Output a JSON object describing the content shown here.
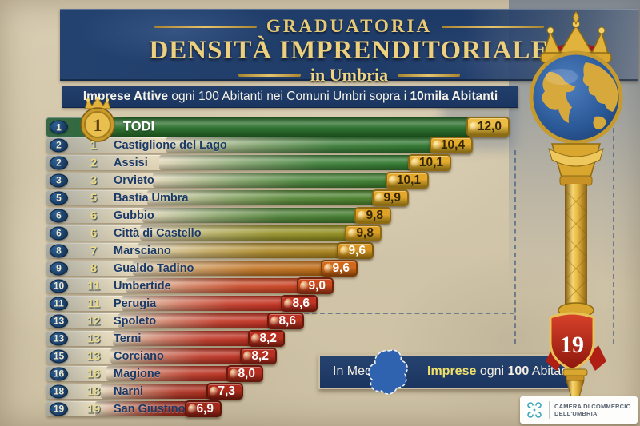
{
  "header": {
    "title_line1": "GRADUATORIA",
    "title_line2": "DENSITÀ IMPRENDITORIALE",
    "title_line3": "in Umbria",
    "subtitle_bold1": "Imprese Attive",
    "subtitle_mid": " ogni 100 Abitanti nei Comuni Umbri sopra i ",
    "subtitle_bold2": "10mila Abitanti"
  },
  "chart_data": {
    "type": "bar",
    "orientation": "horizontal",
    "title": "GRADUATORIA DENSITÀ IMPRENDITORIALE in Umbria",
    "subtitle": "Imprese Attive ogni 100 Abitanti nei Comuni Umbri sopra i 10mila Abitanti",
    "unit": "imprese attive ogni 100 abitanti",
    "categories": [
      "TODI",
      "Castiglione del Lago",
      "Assisi",
      "Orvieto",
      "Bastia Umbra",
      "Gubbio",
      "Città di Castello",
      "Marsciano",
      "Gualdo Tadino",
      "Umbertide",
      "Perugia",
      "Spoleto",
      "Terni",
      "Corciano",
      "Magione",
      "Narni",
      "San Giustino"
    ],
    "values": [
      12.0,
      10.4,
      10.1,
      10.1,
      9.9,
      9.8,
      9.8,
      9.6,
      9.6,
      9.0,
      8.6,
      8.6,
      8.2,
      8.2,
      8.0,
      7.3,
      6.9
    ],
    "value_labels": [
      "12,0",
      "10,4",
      "10,1",
      "10,1",
      "9,9",
      "9,8",
      "9,8",
      "9,6",
      "9,6",
      "9,0",
      "8,6",
      "8,6",
      "8,2",
      "8,2",
      "8,0",
      "7,3",
      "6,9"
    ],
    "rank_column_1": [
      "1",
      "2",
      "2",
      "3",
      "5",
      "6",
      "6",
      "8",
      "9",
      "10",
      "11",
      "13",
      "13",
      "15",
      "16",
      "18",
      "19"
    ],
    "rank_column_2": [
      "1",
      "1",
      "2",
      "3",
      "5",
      "6",
      "6",
      "7",
      "8",
      "11",
      "11",
      "12",
      "13",
      "13",
      "16",
      "18",
      "19"
    ],
    "rows": [
      {
        "rank1": "1",
        "rank2": "1",
        "name": "TODI",
        "label": "12,0",
        "value": 12.0,
        "bar_color": "#256c27",
        "badge_bg": "#ecbd45",
        "badge_border": "#8e6a12",
        "badge_text": "#322605",
        "bar_end": 633,
        "highlight": true
      },
      {
        "rank1": "2",
        "rank2": "1",
        "name": "Castiglione del Lago",
        "label": "10,4",
        "value": 10.4,
        "bar_color": "#2d752d",
        "badge_bg": "#e5ac2e",
        "badge_border": "#8e6a12",
        "badge_text": "#322605",
        "bar_end": 587,
        "highlight": false
      },
      {
        "rank1": "2",
        "rank2": "2",
        "name": "Assisi",
        "label": "10,1",
        "value": 10.1,
        "bar_color": "#30782e",
        "badge_bg": "#e5ac2e",
        "badge_border": "#8e6a12",
        "badge_text": "#322605",
        "bar_end": 560,
        "highlight": false
      },
      {
        "rank1": "3",
        "rank2": "3",
        "name": "Orvieto",
        "label": "10,1",
        "value": 10.1,
        "bar_color": "#3a7b2c",
        "badge_bg": "#e2a72b",
        "badge_border": "#8e6a12",
        "badge_text": "#322605",
        "bar_end": 532,
        "highlight": false
      },
      {
        "rank1": "5",
        "rank2": "5",
        "name": "Bastia Umbra",
        "label": "9,9",
        "value": 9.9,
        "bar_color": "#477e29",
        "badge_bg": "#e2a72b",
        "badge_border": "#8e6a12",
        "badge_text": "#322605",
        "bar_end": 507,
        "highlight": false
      },
      {
        "rank1": "6",
        "rank2": "6",
        "name": "Gubbio",
        "label": "9,8",
        "value": 9.8,
        "bar_color": "#40792a",
        "badge_bg": "#dfa228",
        "badge_border": "#8e6a12",
        "badge_text": "#322605",
        "bar_end": 485,
        "highlight": false
      },
      {
        "rank1": "6",
        "rank2": "6",
        "name": "Città di Castello",
        "label": "9,8",
        "value": 9.8,
        "bar_color": "#8f8c1d",
        "badge_bg": "#dda026",
        "badge_border": "#8e6a12",
        "badge_text": "#322605",
        "bar_end": 473,
        "highlight": false
      },
      {
        "rank1": "8",
        "rank2": "7",
        "name": "Marsciano",
        "label": "9,6",
        "value": 9.6,
        "bar_color": "#a8811b",
        "badge_bg": "#d79420",
        "badge_border": "#7d5a0e",
        "badge_text": "#ffffff",
        "bar_end": 463,
        "highlight": false
      },
      {
        "rank1": "9",
        "rank2": "8",
        "name": "Gualdo Tadino",
        "label": "9,6",
        "value": 9.6,
        "bar_color": "#bd6a15",
        "badge_bg": "#d2691a",
        "badge_border": "#7c3c0a",
        "badge_text": "#ffffff",
        "bar_end": 443,
        "highlight": false
      },
      {
        "rank1": "10",
        "rank2": "11",
        "name": "Umbertide",
        "label": "9,0",
        "value": 9.0,
        "bar_color": "#c63e1d",
        "badge_bg": "#cc4a1e",
        "badge_border": "#6f2410",
        "badge_text": "#ffffff",
        "bar_end": 413,
        "highlight": false
      },
      {
        "rank1": "11",
        "rank2": "11",
        "name": "Perugia",
        "label": "8,6",
        "value": 8.6,
        "bar_color": "#c22f1e",
        "badge_bg": "#c03524",
        "badge_border": "#69180e",
        "badge_text": "#ffffff",
        "bar_end": 393,
        "highlight": false
      },
      {
        "rank1": "13",
        "rank2": "12",
        "name": "Spoleto",
        "label": "8,6",
        "value": 8.6,
        "bar_color": "#bf2d1d",
        "badge_bg": "#bd3223",
        "badge_border": "#69180e",
        "badge_text": "#ffffff",
        "bar_end": 376,
        "highlight": false
      },
      {
        "rank1": "13",
        "rank2": "13",
        "name": "Terni",
        "label": "8,2",
        "value": 8.2,
        "bar_color": "#bb2b1c",
        "badge_bg": "#ba3122",
        "badge_border": "#69180e",
        "badge_text": "#ffffff",
        "bar_end": 352,
        "highlight": false
      },
      {
        "rank1": "15",
        "rank2": "13",
        "name": "Corciano",
        "label": "8,2",
        "value": 8.2,
        "bar_color": "#b82a1b",
        "badge_bg": "#b83021",
        "badge_border": "#69180e",
        "badge_text": "#ffffff",
        "bar_end": 342,
        "highlight": false
      },
      {
        "rank1": "16",
        "rank2": "16",
        "name": "Magione",
        "label": "8,0",
        "value": 8.0,
        "bar_color": "#b52919",
        "badge_bg": "#b52f20",
        "badge_border": "#69180e",
        "badge_text": "#ffffff",
        "bar_end": 325,
        "highlight": false
      },
      {
        "rank1": "18",
        "rank2": "18",
        "name": "Narni",
        "label": "7,3",
        "value": 7.3,
        "bar_color": "#a92415",
        "badge_bg": "#ac2b1c",
        "badge_border": "#5e150c",
        "badge_text": "#ffffff",
        "bar_end": 300,
        "highlight": false
      },
      {
        "rank1": "19",
        "rank2": "19",
        "name": "San Giustino",
        "label": "6,9",
        "value": 6.9,
        "bar_color": "#9e2012",
        "badge_bg": "#a2281a",
        "badge_border": "#5e150c",
        "badge_text": "#ffffff",
        "bar_end": 273,
        "highlight": false
      }
    ]
  },
  "average_box": {
    "label": "In Media:",
    "highlight": "Imprese",
    "mid": " ogni ",
    "bold": "100",
    "tail": " Abitanti"
  },
  "scepter": {
    "shield_value": "19"
  },
  "medallion": {
    "value": "1"
  },
  "logo": {
    "line1": "CAMERA DI COMMERCIO",
    "line2": "DELL'UMBRIA"
  },
  "colors": {
    "banner_navy": "#1e3a66",
    "gold": "#d4af4e",
    "parchment": "#d2c6aa",
    "badge_gold": "#e5ac2e",
    "shield_red": "#c02317"
  }
}
